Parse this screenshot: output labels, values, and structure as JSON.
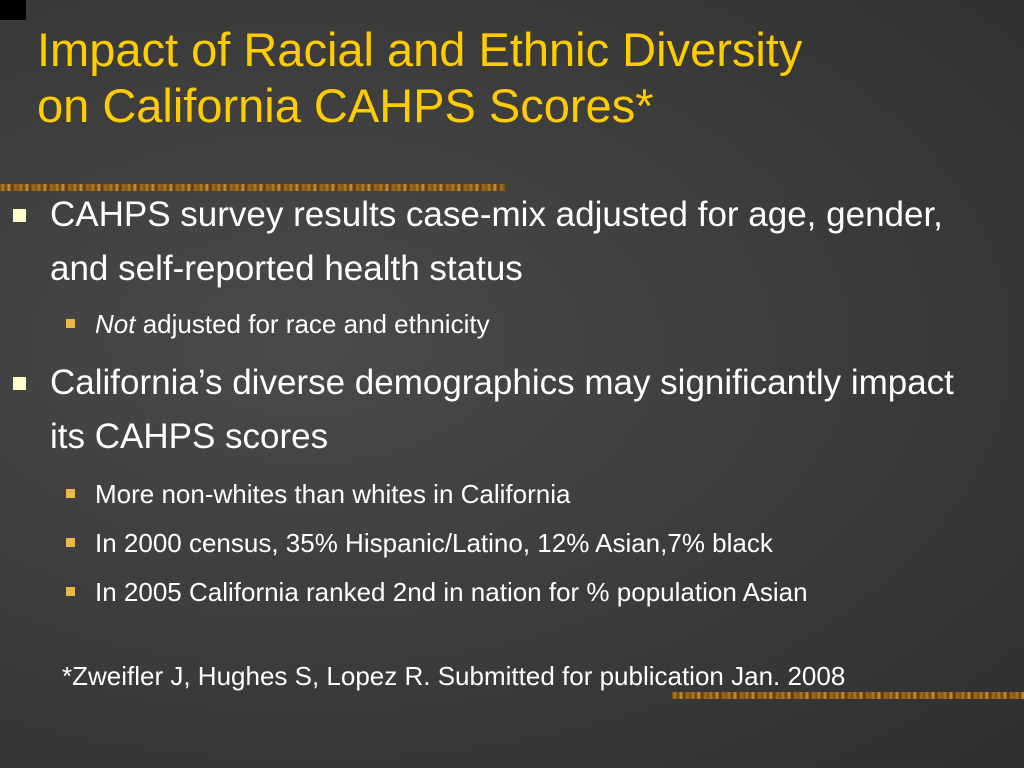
{
  "slide": {
    "title_line1": "Impact of Racial and Ethnic Diversity",
    "title_line2": "on California CAHPS Scores*",
    "bullets": [
      {
        "text": "CAHPS survey results case-mix adjusted for age, gender, and self-reported health status",
        "sub": [
          {
            "emphasis": "Not",
            "text": " adjusted for race and ethnicity"
          }
        ]
      },
      {
        "text": "California’s diverse demographics may significantly impact its CAHPS scores",
        "sub": [
          {
            "text": "More non-whites than whites in California"
          },
          {
            "text": "In 2000 census, 35% Hispanic/Latino, 12% Asian,7% black"
          },
          {
            "text": "In 2005 California ranked 2nd in nation for % population Asian"
          }
        ]
      }
    ],
    "footnote": "*Zweifler J, Hughes S, Lopez R. Submitted for publication Jan. 2008"
  },
  "colors": {
    "background": "#3b3b3b",
    "title": "#ffcc00",
    "text": "#ffffff",
    "bullet_level1": "#ffffcc",
    "bullet_level2": "#e8b84a"
  }
}
